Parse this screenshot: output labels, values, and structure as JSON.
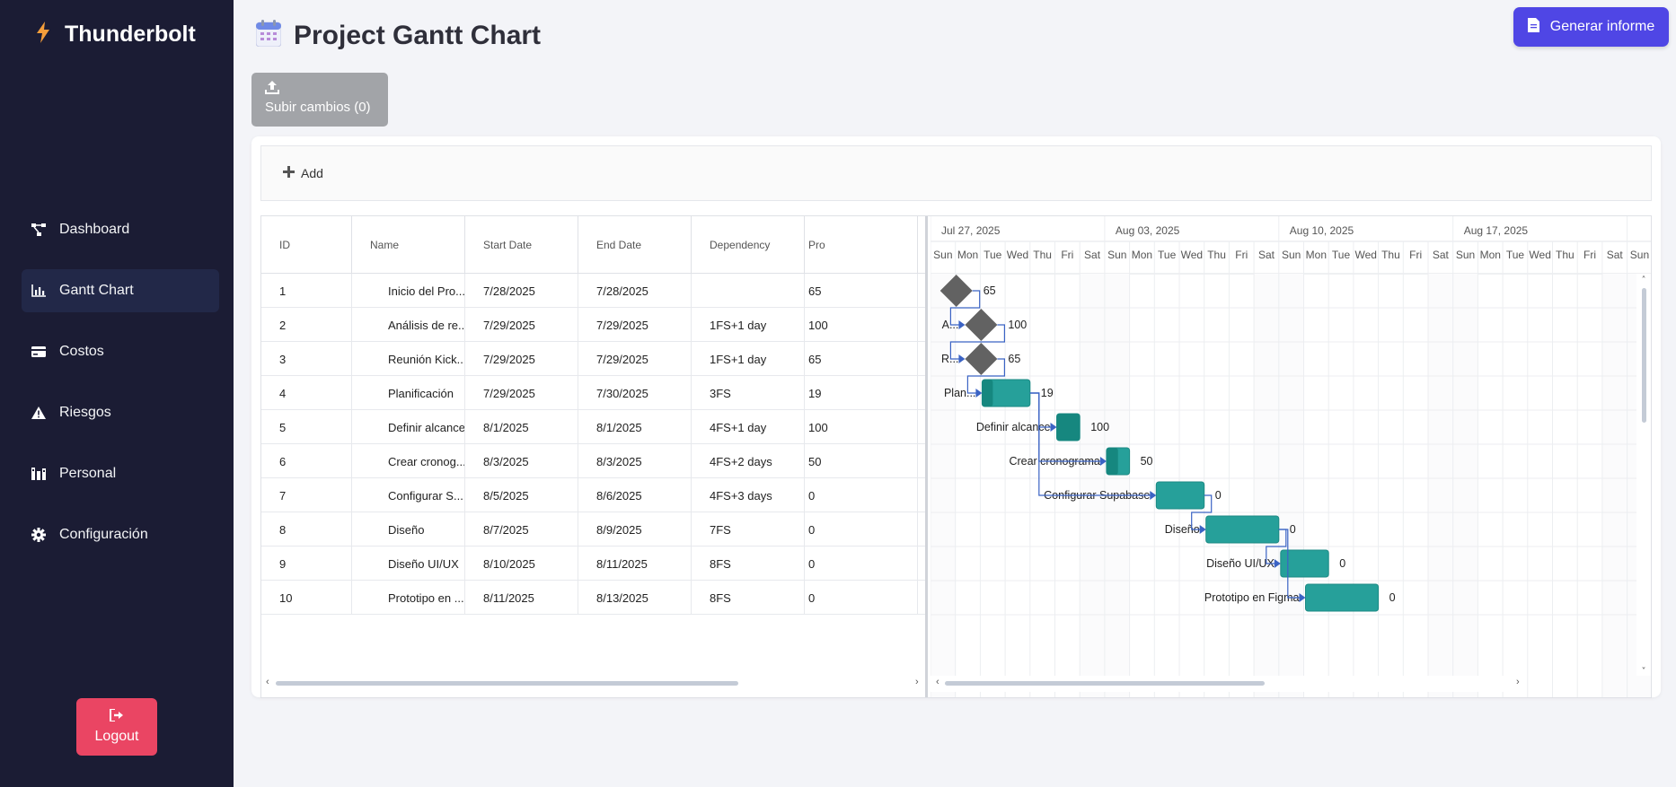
{
  "brand": {
    "name": "Thunderbolt",
    "icon": "lightning-icon",
    "accent": "#f59e3b"
  },
  "sidebar": {
    "items": [
      {
        "label": "Dashboard",
        "icon": "dashboard-icon",
        "active": false
      },
      {
        "label": "Gantt Chart",
        "icon": "bar-chart-icon",
        "active": true
      },
      {
        "label": "Costos",
        "icon": "card-icon",
        "active": false
      },
      {
        "label": "Riesgos",
        "icon": "warning-icon",
        "active": false
      },
      {
        "label": "Personal",
        "icon": "people-icon",
        "active": false
      },
      {
        "label": "Configuración",
        "icon": "gear-icon",
        "active": false
      }
    ],
    "logout_label": "Logout"
  },
  "header": {
    "title": "Project Gantt Chart",
    "report_button": "Generar informe",
    "upload_button": "Subir cambios (0)"
  },
  "toolbar": {
    "add_label": "Add"
  },
  "grid": {
    "columns": [
      "ID",
      "Name",
      "Start Date",
      "End Date",
      "Dependency",
      "Progress"
    ],
    "visible_header_progress": "Pro",
    "rows": [
      {
        "id": "1",
        "name": "Inicio del Pro...",
        "start": "7/28/2025",
        "end": "7/28/2025",
        "dep": "",
        "progress": "65"
      },
      {
        "id": "2",
        "name": "Análisis de re...",
        "start": "7/29/2025",
        "end": "7/29/2025",
        "dep": "1FS+1 day",
        "progress": "100"
      },
      {
        "id": "3",
        "name": "Reunión Kick...",
        "start": "7/29/2025",
        "end": "7/29/2025",
        "dep": "1FS+1 day",
        "progress": "65"
      },
      {
        "id": "4",
        "name": "Planificación",
        "start": "7/29/2025",
        "end": "7/30/2025",
        "dep": "3FS",
        "progress": "19"
      },
      {
        "id": "5",
        "name": "Definir alcance",
        "start": "8/1/2025",
        "end": "8/1/2025",
        "dep": "4FS+1 day",
        "progress": "100"
      },
      {
        "id": "6",
        "name": "Crear cronog...",
        "start": "8/3/2025",
        "end": "8/3/2025",
        "dep": "4FS+2 days",
        "progress": "50"
      },
      {
        "id": "7",
        "name": "Configurar S...",
        "start": "8/5/2025",
        "end": "8/6/2025",
        "dep": "4FS+3 days",
        "progress": "0"
      },
      {
        "id": "8",
        "name": "Diseño",
        "start": "8/7/2025",
        "end": "8/9/2025",
        "dep": "7FS",
        "progress": "0"
      },
      {
        "id": "9",
        "name": "Diseño UI/UX",
        "start": "8/10/2025",
        "end": "8/11/2025",
        "dep": "8FS",
        "progress": "0"
      },
      {
        "id": "10",
        "name": "Prototipo en ...",
        "start": "8/11/2025",
        "end": "8/13/2025",
        "dep": "8FS",
        "progress": "0"
      }
    ]
  },
  "timeline": {
    "weeks": [
      "Jul 27, 2025",
      "Aug 03, 2025",
      "Aug 10, 2025",
      "Aug 17, 2025"
    ],
    "days": [
      "Sun",
      "Mon",
      "Tue",
      "Wed",
      "Thu",
      "Fri",
      "Sat"
    ],
    "tasks": [
      {
        "type": "milestone",
        "day": 1,
        "label": "",
        "progress": "65"
      },
      {
        "type": "milestone",
        "day": 2,
        "label": "A...",
        "progress": "100"
      },
      {
        "type": "milestone",
        "day": 2,
        "label": "R...",
        "progress": "65"
      },
      {
        "type": "bar",
        "start": 2,
        "dur": 2,
        "pct": 0.19,
        "label": "Plan...",
        "progress": "19"
      },
      {
        "type": "bar",
        "start": 5,
        "dur": 1,
        "pct": 1.0,
        "label": "Definir alcance",
        "progress": "100"
      },
      {
        "type": "bar",
        "start": 7,
        "dur": 1,
        "pct": 0.5,
        "label": "Crear cronograma",
        "progress": "50"
      },
      {
        "type": "bar",
        "start": 9,
        "dur": 2,
        "pct": 0,
        "label": "Configurar Supabase",
        "progress": "0"
      },
      {
        "type": "bar",
        "start": 11,
        "dur": 3,
        "pct": 0,
        "label": "Diseño",
        "progress": "0"
      },
      {
        "type": "bar",
        "start": 14,
        "dur": 2,
        "pct": 0,
        "label": "Diseño UI/UX",
        "progress": "0"
      },
      {
        "type": "bar",
        "start": 15,
        "dur": 3,
        "pct": 0,
        "label": "Prototipo en Figma",
        "progress": "0"
      }
    ],
    "links": [
      [
        0,
        1
      ],
      [
        1,
        2
      ],
      [
        2,
        3
      ],
      [
        3,
        4
      ],
      [
        3,
        5
      ],
      [
        3,
        6
      ],
      [
        6,
        7
      ],
      [
        7,
        8
      ],
      [
        7,
        9
      ]
    ]
  },
  "colors": {
    "bar": "#26a09a",
    "bar_progress": "#16877f",
    "milestone": "#626262",
    "link": "#3b63c4",
    "sidebar": "#1b1c34",
    "report": "#4f46e5",
    "logout": "#ea4563"
  }
}
